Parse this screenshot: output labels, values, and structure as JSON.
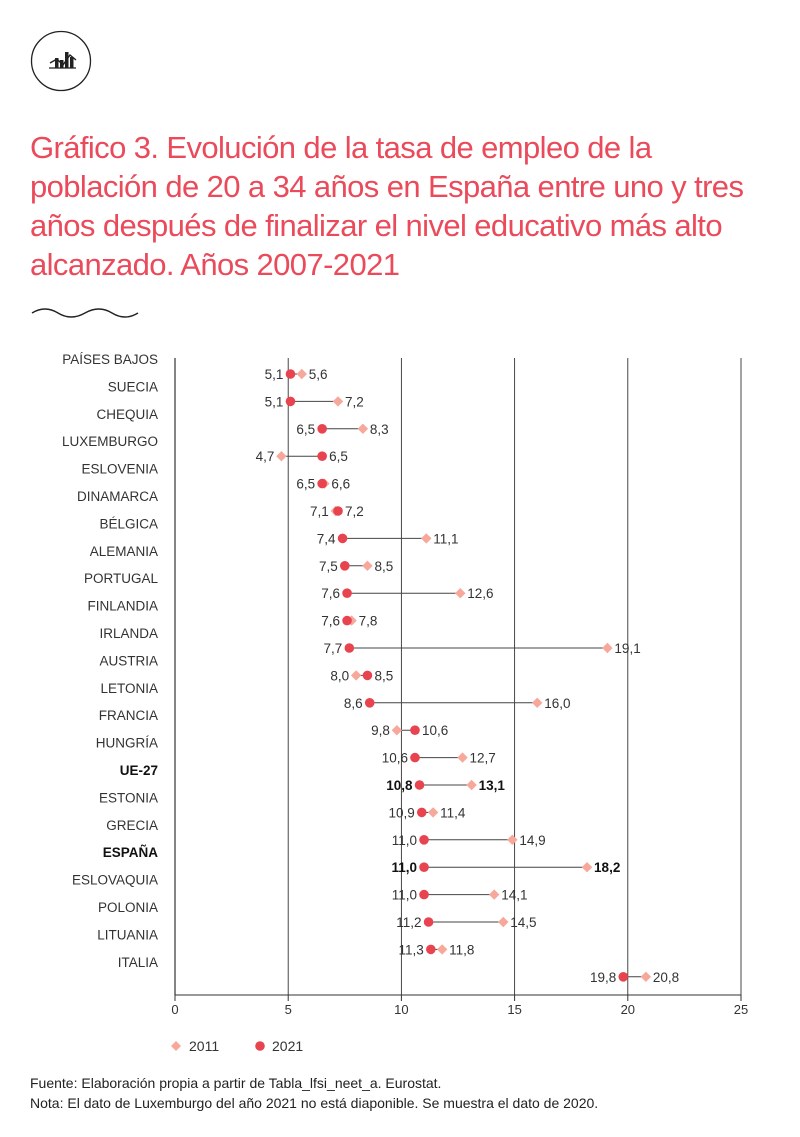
{
  "header": {
    "title": "Gráfico 3. Evolución de la tasa de empleo de la población de 20 a 34 años en España entre uno y tres años después de finalizar el nivel educativo más alto alcanzado. Años 2007-2021"
  },
  "colors": {
    "accent": "#ea4a5a",
    "series_2011": "#f7a89a",
    "series_2021": "#e84450",
    "grid": "#333333",
    "connector": "#444444"
  },
  "footer": {
    "source": "Fuente:  Elaboración propia a partir de Tabla_lfsi_neet_a. Eurostat.",
    "note": "Nota: El dato de Luxemburgo del año 2021 no está diaponible. Se muestra el dato de 2020."
  },
  "chart_data": {
    "type": "dumbbell",
    "title": "Gráfico 3. Evolución de la tasa de empleo de la población de 20 a 34 años en España entre uno y tres años después de finalizar el nivel educativo más alto alcanzado. Años 2007-2021",
    "xlim": [
      0,
      25
    ],
    "xticks": [
      "0",
      "5",
      "10",
      "15",
      "20",
      "25"
    ],
    "xtick_values": [
      0,
      5,
      10,
      15,
      20,
      25
    ],
    "grid": true,
    "legend_position": "bottom-left",
    "series": [
      {
        "name": "2011",
        "marker": "diamond"
      },
      {
        "name": "2021",
        "marker": "circle"
      }
    ],
    "categories": [
      "PAÍSES BAJOS",
      "SUECIA",
      "CHEQUIA",
      "LUXEMBURGO",
      "ESLOVENIA",
      "DINAMARCA",
      "BÉLGICA",
      "ALEMANIA",
      "PORTUGAL",
      "FINLANDIA",
      "IRLANDA",
      "AUSTRIA",
      "LETONIA",
      "FRANCIA",
      "HUNGRÍA",
      "UE-27",
      "ESTONIA",
      "GRECIA",
      "ESPAÑA",
      "ESLOVAQUIA",
      "POLONIA",
      "LITUANIA",
      "ITALIA"
    ],
    "highlight": [
      "UE-27",
      "ESPAÑA"
    ],
    "values_2011": [
      5.6,
      7.2,
      8.3,
      4.7,
      6.6,
      7.1,
      11.1,
      8.5,
      12.6,
      7.8,
      19.1,
      8.0,
      16.0,
      9.8,
      12.7,
      13.1,
      11.4,
      14.9,
      18.2,
      14.1,
      14.5,
      11.8,
      20.8
    ],
    "values_2021": [
      5.1,
      5.1,
      6.5,
      6.5,
      6.5,
      7.2,
      7.4,
      7.5,
      7.6,
      7.6,
      7.7,
      8.5,
      8.6,
      10.6,
      10.6,
      10.8,
      10.9,
      11.0,
      11.0,
      11.0,
      11.2,
      11.3,
      19.8
    ],
    "labels_2011": [
      "5,6",
      "7,2",
      "8,3",
      "4,7",
      "6,6",
      "7,1",
      "11,1",
      "8,5",
      "12,6",
      "7,8",
      "19,1",
      "8,0",
      "16,0",
      "9,8",
      "12,7",
      "13,1",
      "11,4",
      "14,9",
      "18,2",
      "14,1",
      "14,5",
      "11,8",
      "20,8"
    ],
    "labels_2021": [
      "5,1",
      "5,1",
      "6,5",
      "6,5",
      "6,5",
      "7,2",
      "7,4",
      "7,5",
      "7,6",
      "7,6",
      "7,7",
      "8,5",
      "8,6",
      "10,6",
      "10,6",
      "10,8",
      "10,9",
      "11,0",
      "11,0",
      "11,0",
      "11,2",
      "11,3",
      "19,8"
    ]
  }
}
